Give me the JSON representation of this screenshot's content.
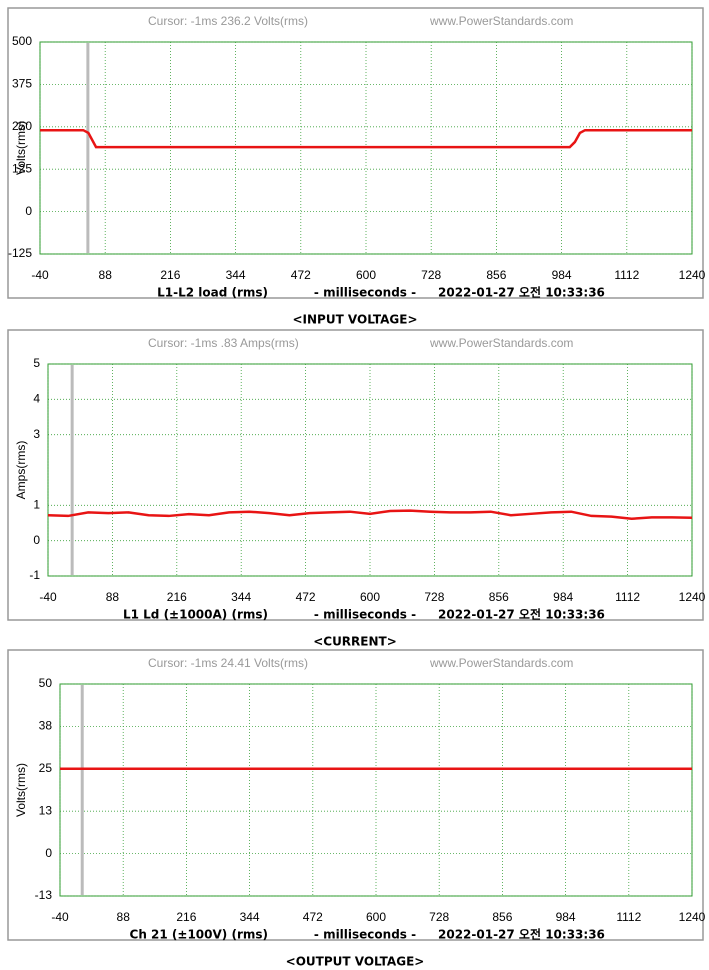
{
  "chart_data": [
    {
      "type": "line",
      "cursor_text": "Cursor:  -1ms  236.2 Volts(rms)",
      "site": "www.PowerStandards.com",
      "ylabel": "Volts(rms)",
      "channel": "L1-L2 load (rms)",
      "xlabel": "- milliseconds -",
      "timestamp": "2022-01-27 오전 10:33:36",
      "caption": "<INPUT VOLTAGE>",
      "xlim": [
        -40,
        1240
      ],
      "xticks": [
        -40,
        88,
        216,
        344,
        472,
        600,
        728,
        856,
        984,
        1112,
        1240
      ],
      "ylim": [
        -125,
        500
      ],
      "yticks": [
        -125,
        0,
        125,
        250,
        375,
        500
      ],
      "grid": true,
      "cursor_x": 54,
      "x": [
        -40,
        0,
        45,
        55,
        70,
        200,
        400,
        600,
        800,
        1000,
        1010,
        1020,
        1030,
        1100,
        1240
      ],
      "series": [
        {
          "color": "#e81414",
          "values": [
            240,
            240,
            240,
            232,
            190,
            190,
            190,
            190,
            190,
            190,
            205,
            232,
            240,
            240,
            240
          ]
        }
      ]
    },
    {
      "type": "line",
      "cursor_text": "Cursor:  -1ms  .83 Amps(rms)",
      "site": "www.PowerStandards.com",
      "ylabel": "Amps(rms)",
      "channel": "L1 Ld (±1000A) (rms)",
      "xlabel": "- milliseconds -",
      "timestamp": "2022-01-27 오전 10:33:36",
      "caption": "<CURRENT>",
      "xlim": [
        -40,
        1240
      ],
      "xticks": [
        -40,
        88,
        216,
        344,
        472,
        600,
        728,
        856,
        984,
        1112,
        1240
      ],
      "ylim": [
        -1,
        5
      ],
      "yticks": [
        -1,
        0,
        1,
        3,
        4,
        5
      ],
      "grid": true,
      "cursor_x": 8,
      "x": [
        -40,
        0,
        40,
        80,
        120,
        160,
        200,
        240,
        280,
        320,
        360,
        400,
        440,
        480,
        520,
        560,
        600,
        640,
        680,
        720,
        760,
        800,
        840,
        880,
        920,
        960,
        1000,
        1040,
        1080,
        1120,
        1160,
        1200,
        1240
      ],
      "series": [
        {
          "color": "#e81414",
          "values": [
            0.72,
            0.7,
            0.8,
            0.78,
            0.8,
            0.72,
            0.7,
            0.75,
            0.72,
            0.8,
            0.82,
            0.78,
            0.72,
            0.78,
            0.8,
            0.82,
            0.76,
            0.84,
            0.85,
            0.82,
            0.8,
            0.8,
            0.82,
            0.72,
            0.76,
            0.8,
            0.82,
            0.7,
            0.68,
            0.62,
            0.66,
            0.66,
            0.65
          ]
        }
      ]
    },
    {
      "type": "line",
      "cursor_text": "Cursor:  -1ms  24.41 Volts(rms)",
      "site": "www.PowerStandards.com",
      "ylabel": "Volts(rms)",
      "channel": "Ch 21 (±100V) (rms)",
      "xlabel": "- milliseconds -",
      "timestamp": "2022-01-27 오전 10:33:36",
      "caption": "<OUTPUT VOLTAGE>",
      "xlim": [
        -40,
        1240
      ],
      "xticks": [
        -40,
        88,
        216,
        344,
        472,
        600,
        728,
        856,
        984,
        1112,
        1240
      ],
      "ylim": [
        -12.5,
        50
      ],
      "yticks": [
        {
          "value": -12.5,
          "label": "-13"
        },
        0,
        {
          "value": 12.5,
          "label": "13"
        },
        25,
        {
          "value": 37.5,
          "label": "38"
        },
        50
      ],
      "grid": true,
      "cursor_x": 5,
      "x": [
        -40,
        300,
        600,
        900,
        1240
      ],
      "series": [
        {
          "color": "#e81414",
          "values": [
            25,
            25,
            25,
            25,
            25
          ]
        }
      ]
    }
  ]
}
